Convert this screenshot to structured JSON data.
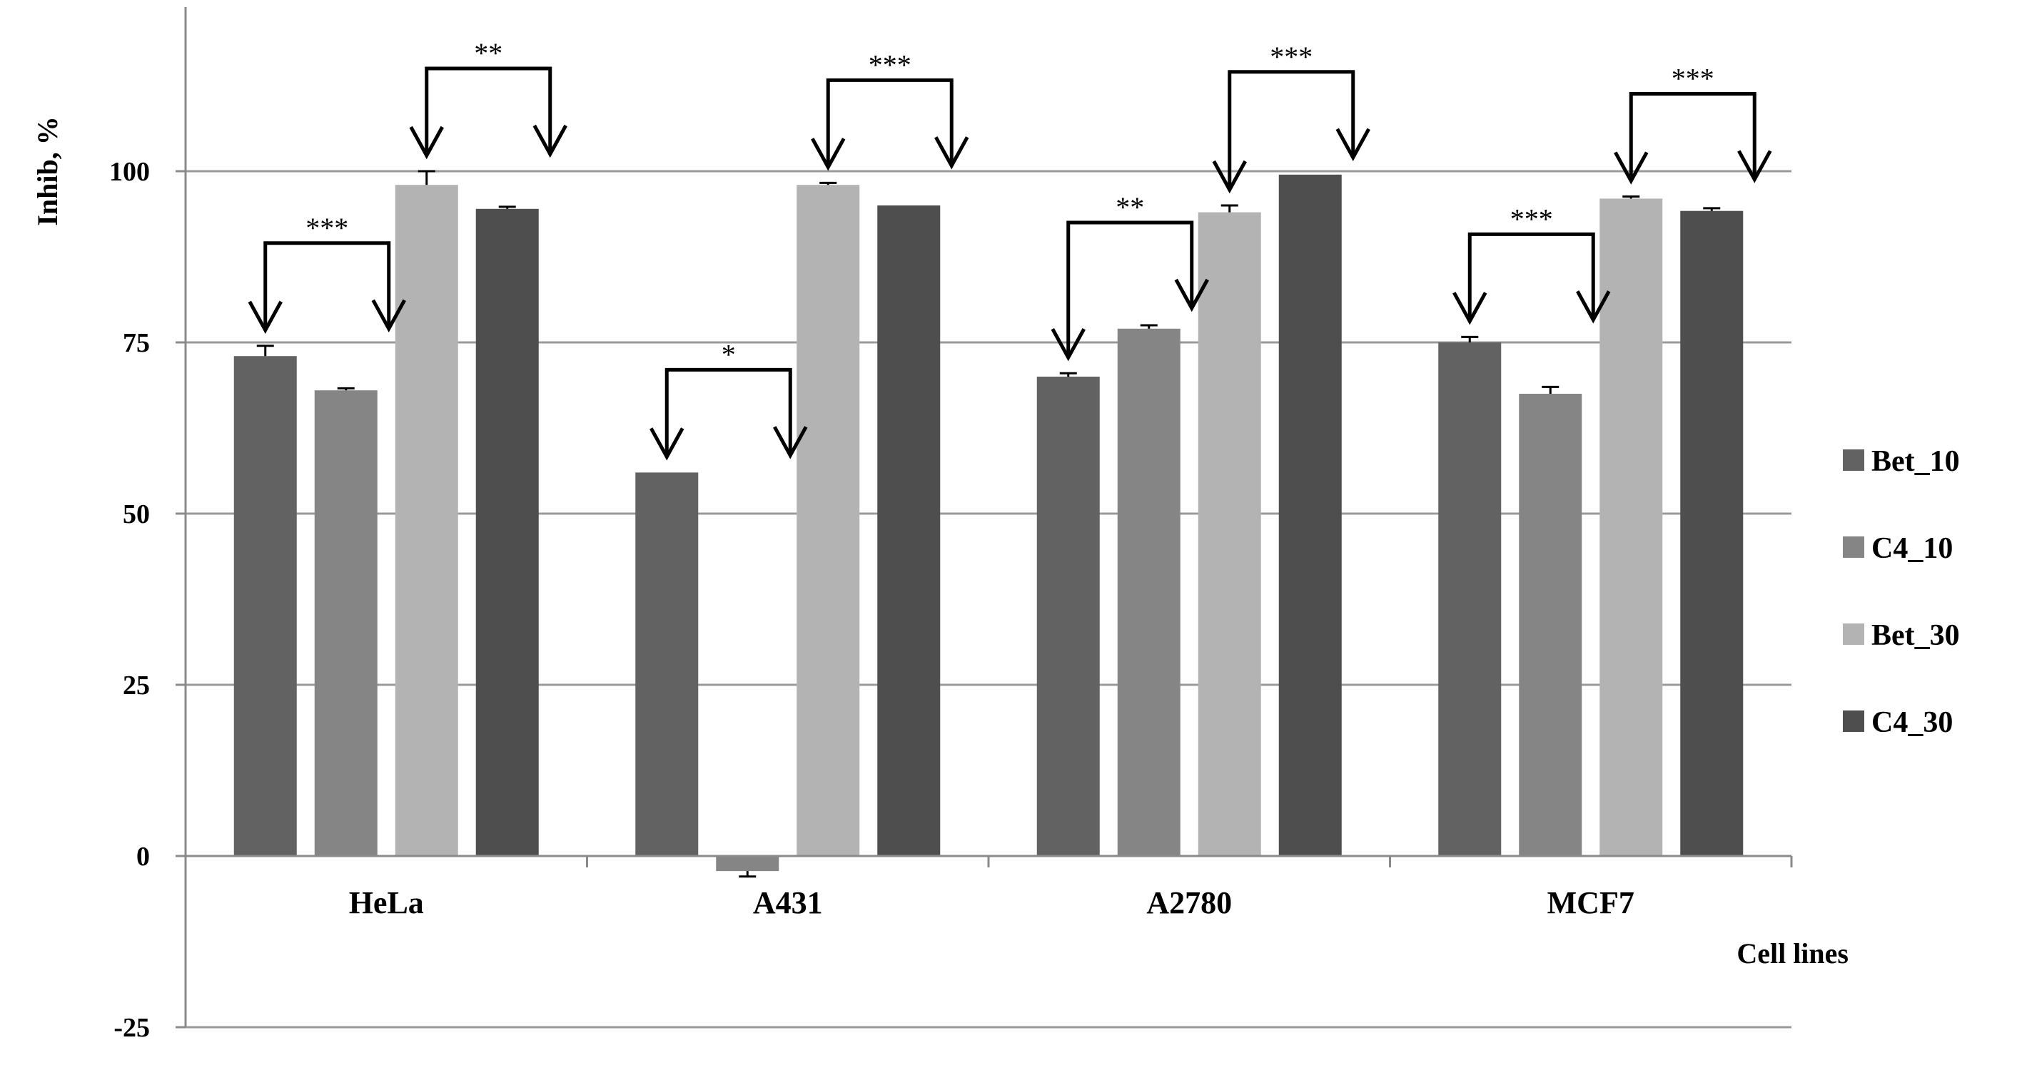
{
  "chart_data": {
    "type": "bar",
    "categories": [
      "HeLa",
      "A431",
      "A2780",
      "MCF7"
    ],
    "series": [
      {
        "name": "Bet_10",
        "color": "#626262",
        "values": [
          73,
          56,
          70,
          75
        ],
        "errors": [
          1.5,
          0,
          0.5,
          0.8
        ]
      },
      {
        "name": "C4_10",
        "color": "#858585",
        "values": [
          68,
          -2.2,
          77,
          67.5
        ],
        "errors": [
          0.3,
          0.8,
          0.5,
          1
        ]
      },
      {
        "name": "Bet_30",
        "color": "#b3b3b3",
        "values": [
          98,
          98,
          94,
          96
        ],
        "errors": [
          2,
          0.3,
          1,
          0.3
        ]
      },
      {
        "name": "C4_30",
        "color": "#4e4e4e",
        "values": [
          94.5,
          95,
          99.5,
          94.2
        ],
        "errors": [
          0.3,
          0,
          0,
          0.4
        ]
      }
    ],
    "ylabel": "Inhib, %",
    "xlabel": "Cell lines",
    "ylim": [
      -25,
      125
    ],
    "yticks": [
      -25,
      0,
      25,
      50,
      75,
      100
    ],
    "grid": true,
    "legend_position": "right",
    "significance": [
      {
        "category": "HeLa",
        "from_series": 0,
        "to_series": 1,
        "label": "***"
      },
      {
        "category": "HeLa",
        "from_series": 2,
        "to_series": 3,
        "label": "**"
      },
      {
        "category": "A431",
        "from_series": 0,
        "to_series": 1,
        "label": "*"
      },
      {
        "category": "A431",
        "from_series": 2,
        "to_series": 3,
        "label": "***"
      },
      {
        "category": "A2780",
        "from_series": 0,
        "to_series": 1,
        "label": "**"
      },
      {
        "category": "A2780",
        "from_series": 2,
        "to_series": 3,
        "label": "***"
      },
      {
        "category": "MCF7",
        "from_series": 0,
        "to_series": 1,
        "label": "***"
      },
      {
        "category": "MCF7",
        "from_series": 2,
        "to_series": 3,
        "label": "***"
      }
    ]
  }
}
